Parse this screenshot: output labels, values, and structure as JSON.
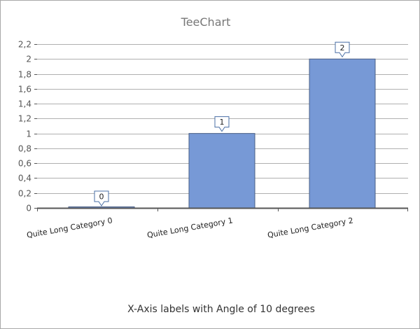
{
  "chart_data": {
    "type": "bar",
    "title": "TeeChart",
    "footer": "X-Axis labels with Angle of 10 degrees",
    "categories": [
      "Quite Long Category 0",
      "Quite Long Category 1",
      "Quite Long Category 2"
    ],
    "values": [
      0,
      1,
      2
    ],
    "data_labels": [
      "0",
      "1",
      "2"
    ],
    "ylim": [
      0,
      2.2
    ],
    "yticks": [
      0,
      0.2,
      0.4,
      0.6,
      0.8,
      1,
      1.2,
      1.4,
      1.6,
      1.8,
      2,
      2.2
    ],
    "ytick_labels": [
      "0",
      "0,2",
      "0,4",
      "0,6",
      "0,8",
      "1",
      "1,2",
      "1,4",
      "1,6",
      "1,8",
      "2",
      "2,2"
    ],
    "x_label_angle_degrees": 10,
    "grid": true,
    "legend": "none",
    "colors": {
      "bar_fill": "#7799d6",
      "bar_stroke": "#4a5f86",
      "grid": "#b0b0b0",
      "axis": "#555555",
      "title": "#777777",
      "callout_border": "#4a6fa5",
      "frame": "#a9a9a9"
    }
  }
}
